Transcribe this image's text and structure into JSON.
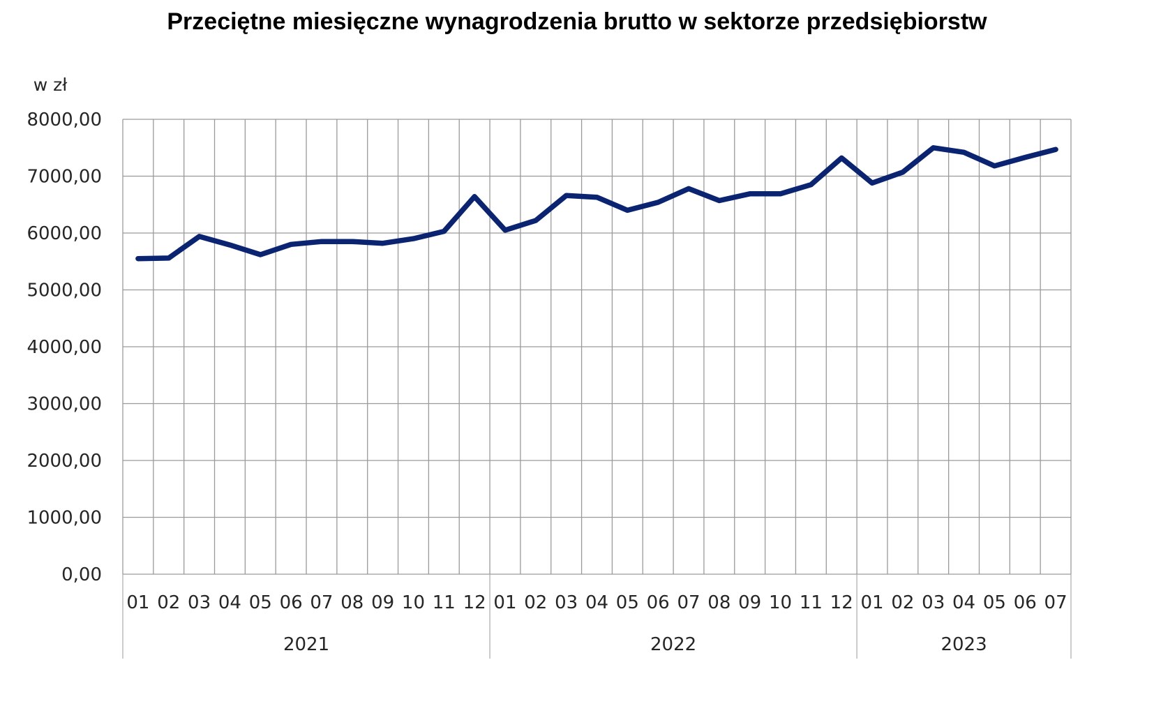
{
  "chart_data": {
    "type": "line",
    "title": "Przeciętne miesięczne wynagrodzenia brutto w sektorze przedsiębiorstw",
    "ylabel": "w zł",
    "xlabel": "",
    "ylim": [
      0,
      8000
    ],
    "ytick_labels": [
      "0,00",
      "1000,00",
      "2000,00",
      "3000,00",
      "4000,00",
      "5000,00",
      "6000,00",
      "7000,00",
      "8000,00"
    ],
    "ytick_values": [
      0,
      1000,
      2000,
      3000,
      4000,
      5000,
      6000,
      7000,
      8000
    ],
    "grid": true,
    "legend": "none",
    "line_color": "#0a2472",
    "categories": [
      "01",
      "02",
      "03",
      "04",
      "05",
      "06",
      "07",
      "08",
      "09",
      "10",
      "11",
      "12",
      "01",
      "02",
      "03",
      "04",
      "05",
      "06",
      "07",
      "08",
      "09",
      "10",
      "11",
      "12",
      "01",
      "02",
      "03",
      "04",
      "05",
      "06",
      "07"
    ],
    "year_groups": [
      {
        "label": "2021",
        "count": 12
      },
      {
        "label": "2022",
        "count": 12
      },
      {
        "label": "2023",
        "count": 7
      }
    ],
    "series": [
      {
        "values": [
          5550,
          5560,
          5940,
          5790,
          5620,
          5800,
          5850,
          5850,
          5820,
          5900,
          6030,
          6640,
          6050,
          6220,
          6660,
          6630,
          6400,
          6540,
          6780,
          6570,
          6690,
          6690,
          6850,
          7320,
          6880,
          7070,
          7500,
          7420,
          7180,
          7330,
          7470
        ]
      }
    ]
  }
}
